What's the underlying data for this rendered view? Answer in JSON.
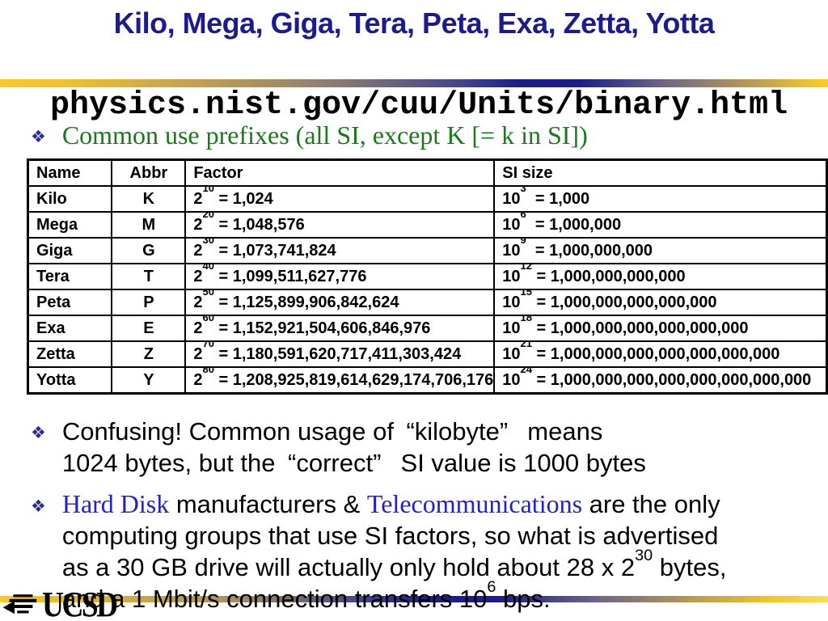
{
  "slide": {
    "title": "Kilo, Mega, Giga, Tera, Peta, Exa, Zetta, Yotta",
    "url": "physics.nist.gov/cuu/Units/binary.html"
  },
  "icons": {
    "bullet_diamond": "❖",
    "ucsd_logo": "trident-wave-icon"
  },
  "colors": {
    "title_navy": "#1b1b8e",
    "bullet_navy": "#2d2d90",
    "green_text": "#1a7a1a",
    "link_blue": "#2121cc",
    "bar_gold": "#f8ca22",
    "bar_navy": "#1a1d8c"
  },
  "bullets": {
    "common_prefixes": "Common use prefixes (all SI, except K [= k in SI])",
    "confusing_lines": [
      "Confusing! Common usage of “kilobyte”  means",
      "1024 bytes, but the “correct”  SI value is 1000 bytes"
    ],
    "bullet3_lines": [
      [
        {
          "t": "Hard Disk",
          "s": "link"
        },
        {
          "t": " manufacturers & ",
          "s": "p"
        },
        {
          "t": "Telecommunications",
          "s": "link"
        },
        {
          "t": " are the only",
          "s": "p"
        }
      ],
      [
        {
          "t": "computing groups that use SI factors, so what is advertised",
          "s": "p"
        }
      ],
      [
        {
          "t": "as a 30 GB drive will actually only hold about 28 x 2",
          "s": "p"
        },
        {
          "t": "30",
          "s": "sup"
        },
        {
          "t": " bytes,",
          "s": "p"
        }
      ],
      [
        {
          "t": "and a 1 Mbit/s connection transfers 10",
          "s": "p"
        },
        {
          "t": "6",
          "s": "sup"
        },
        {
          "t": " bps.",
          "s": "p"
        }
      ]
    ]
  },
  "table": {
    "headers": [
      "Name",
      "Abbr",
      "Factor",
      "SI size"
    ],
    "rows": [
      {
        "name": "Kilo",
        "abbr": "K",
        "exp2": "10",
        "val2": "1,024",
        "exp10": "3",
        "val10": "1,000"
      },
      {
        "name": "Mega",
        "abbr": "M",
        "exp2": "20",
        "val2": "1,048,576",
        "exp10": "6",
        "val10": "1,000,000"
      },
      {
        "name": "Giga",
        "abbr": "G",
        "exp2": "30",
        "val2": "1,073,741,824",
        "exp10": "9",
        "val10": "1,000,000,000"
      },
      {
        "name": "Tera",
        "abbr": "T",
        "exp2": "40",
        "val2": "1,099,511,627,776",
        "exp10": "12",
        "val10": "1,000,000,000,000"
      },
      {
        "name": "Peta",
        "abbr": "P",
        "exp2": "50",
        "val2": "1,125,899,906,842,624",
        "exp10": "15",
        "val10": "1,000,000,000,000,000"
      },
      {
        "name": "Exa",
        "abbr": "E",
        "exp2": "60",
        "val2": "1,152,921,504,606,846,976",
        "exp10": "18",
        "val10": "1,000,000,000,000,000,000"
      },
      {
        "name": "Zetta",
        "abbr": "Z",
        "exp2": "70",
        "val2": "1,180,591,620,717,411,303,424",
        "exp10": "21",
        "val10": "1,000,000,000,000,000,000,000"
      },
      {
        "name": "Yotta",
        "abbr": "Y",
        "exp2": "80",
        "val2": "1,208,925,819,614,629,174,706,176",
        "exp10": "24",
        "val10": "1,000,000,000,000,000,000,000,000"
      }
    ]
  },
  "logo": {
    "text": "UCSD"
  }
}
